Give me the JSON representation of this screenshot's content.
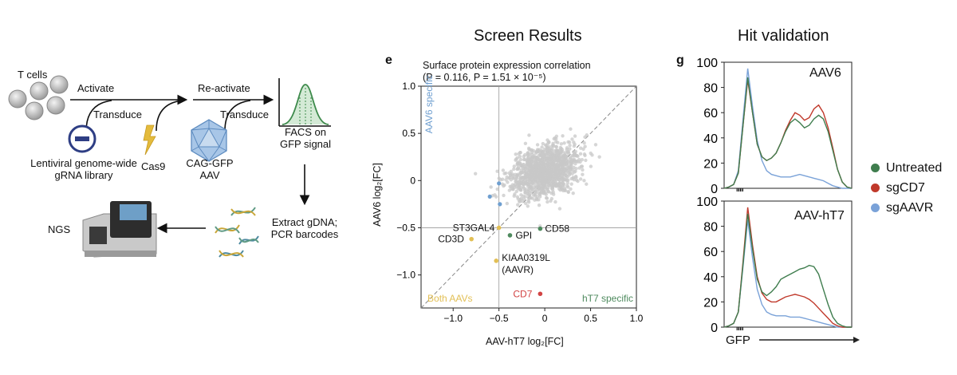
{
  "headings": {
    "screen_results": "Screen Results",
    "hit_validation": "Hit validation"
  },
  "schematic": {
    "t_cells": "T cells",
    "activate": "Activate",
    "transduce_1": "Transduce",
    "re_activate": "Re-activate",
    "transduce_2": "Transduce",
    "library_line1": "Lentiviral genome-wide",
    "library_line2": "gRNA library",
    "cas9": "Cas9",
    "aav_line1": "CAG-GFP",
    "aav_line2": "AAV",
    "facs_line1": "FACS on",
    "facs_line2": "GFP signal",
    "extract_line1": "Extract gDNA;",
    "extract_line2": "PCR barcodes",
    "ngs": "NGS"
  },
  "panel_e": {
    "letter": "e",
    "title_line1": "Surface protein expression correlation",
    "title_line2": "(P = 0.116, P = 1.51 × 10⁻⁵)",
    "xlabel": "AAV-hT7 log₂[FC]",
    "ylabel": "AAV6 log₂[FC]",
    "quadrant_aav6": "AAV6 specific",
    "quadrant_both": "Both AAVs",
    "quadrant_ht7": "hT7 specific",
    "colors": {
      "grey": "#c8c8c8",
      "blue": "#6f9fd0",
      "yellow": "#e2bf55",
      "green": "#4e8a5e",
      "red": "#d24444"
    }
  },
  "panel_g": {
    "letter": "g",
    "top_label": "AAV6",
    "bottom_label": "AAV-hT7",
    "xlabel": "GFP",
    "legend": [
      {
        "name": "Untreated",
        "color": "#3f7d4e"
      },
      {
        "name": "sgCD7",
        "color": "#c0392b"
      },
      {
        "name": "sgAAVR",
        "color": "#7aa2d8"
      }
    ]
  },
  "chart_data": [
    {
      "type": "scatter",
      "title": "Surface protein expression correlation",
      "subtitle": "(P = 0.116, P = 1.51 × 10⁻⁵)",
      "xlabel": "AAV-hT7 log₂[FC]",
      "ylabel": "AAV6 log₂[FC]",
      "xlim": [
        -1.35,
        1.0
      ],
      "ylim": [
        -1.35,
        1.0
      ],
      "xticks": [
        "−1.0",
        "−0.5",
        "0",
        "0.5",
        "1.0"
      ],
      "xtick_values": [
        -1.0,
        -0.5,
        0,
        0.5,
        1.0
      ],
      "yticks": [
        "1.0",
        "0.5",
        "0",
        "−0.5",
        "−1.0"
      ],
      "ytick_values": [
        1.0,
        0.5,
        0,
        -0.5,
        -1.0
      ],
      "reference_lines": {
        "vertical_x": -0.5,
        "horizontal_y": -0.5,
        "diagonal": true
      },
      "labeled_points": [
        {
          "label": "ST3GAL4",
          "x": -0.5,
          "y": -0.5,
          "color": "#e2bf55"
        },
        {
          "label": "CD3D",
          "x": -0.8,
          "y": -0.62,
          "color": "#e2bf55"
        },
        {
          "label": "GPI",
          "x": -0.38,
          "y": -0.58,
          "color": "#4e8a5e"
        },
        {
          "label": "CD58",
          "x": -0.05,
          "y": -0.51,
          "color": "#4e8a5e"
        },
        {
          "label": "KIAA0319L\n(AAVR)",
          "x": -0.53,
          "y": -0.85,
          "color": "#e2bf55"
        },
        {
          "label": "CD7",
          "x": -0.05,
          "y": -1.2,
          "color": "#d24444"
        }
      ],
      "blue_points": [
        {
          "x": -0.5,
          "y": -0.03
        },
        {
          "x": -0.6,
          "y": -0.17
        },
        {
          "x": -0.49,
          "y": -0.25
        }
      ],
      "background_cloud": {
        "center_x": 0.0,
        "center_y": 0.1,
        "sd_x": 0.18,
        "sd_y": 0.13,
        "n": 1200,
        "color": "#c8c8c8"
      }
    },
    {
      "type": "area",
      "title": "AAV6",
      "ylim": [
        0,
        100
      ],
      "yticks": [
        0,
        20,
        40,
        60,
        80,
        100
      ],
      "series": [
        {
          "name": "Untreated",
          "values": [
            0,
            1,
            3,
            12,
            50,
            88,
            60,
            35,
            25,
            22,
            24,
            28,
            36,
            45,
            52,
            55,
            52,
            48,
            50,
            55,
            58,
            55,
            45,
            30,
            15,
            5,
            1,
            0
          ]
        },
        {
          "name": "sgCD7",
          "values": [
            0,
            1,
            3,
            12,
            50,
            86,
            60,
            35,
            25,
            22,
            24,
            28,
            36,
            46,
            54,
            60,
            58,
            54,
            56,
            63,
            66,
            60,
            48,
            32,
            15,
            5,
            1,
            0
          ]
        },
        {
          "name": "sgAAVR",
          "values": [
            0,
            1,
            3,
            14,
            55,
            95,
            65,
            38,
            22,
            14,
            11,
            10,
            9,
            9,
            9,
            10,
            11,
            10,
            9,
            8,
            7,
            6,
            4,
            2,
            1,
            0,
            0,
            0
          ]
        }
      ]
    },
    {
      "type": "area",
      "title": "AAV-hT7",
      "ylim": [
        0,
        100
      ],
      "yticks": [
        0,
        20,
        40,
        60,
        80,
        100
      ],
      "series": [
        {
          "name": "Untreated",
          "values": [
            0,
            1,
            3,
            12,
            50,
            90,
            62,
            38,
            28,
            25,
            28,
            32,
            38,
            40,
            42,
            44,
            46,
            47,
            49,
            48,
            42,
            30,
            18,
            8,
            3,
            1,
            0,
            0
          ]
        },
        {
          "name": "sgCD7",
          "values": [
            0,
            1,
            3,
            12,
            52,
            95,
            65,
            40,
            27,
            22,
            20,
            20,
            22,
            24,
            25,
            26,
            25,
            24,
            22,
            19,
            15,
            11,
            7,
            3,
            1,
            0,
            0,
            0
          ]
        },
        {
          "name": "sgAAVR",
          "values": [
            0,
            1,
            3,
            12,
            48,
            85,
            55,
            30,
            18,
            12,
            10,
            9,
            9,
            9,
            8,
            8,
            8,
            7,
            6,
            5,
            4,
            3,
            2,
            1,
            0,
            0,
            0,
            0
          ]
        }
      ]
    }
  ]
}
